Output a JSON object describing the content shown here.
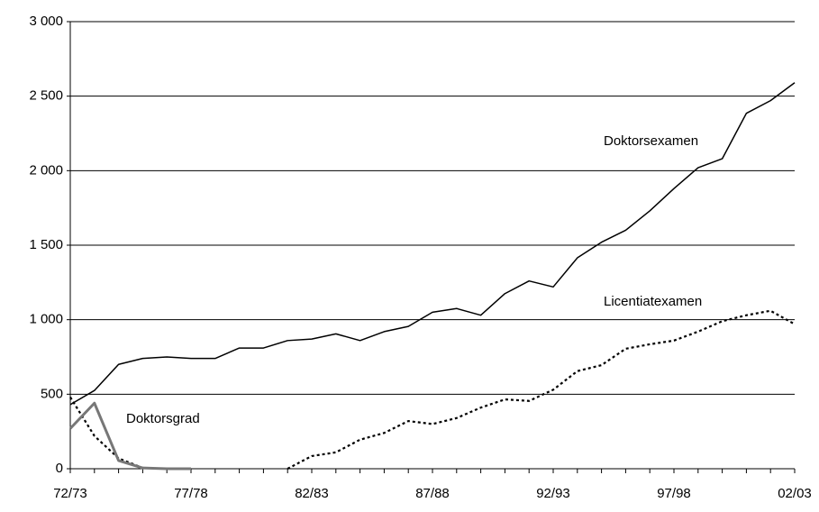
{
  "chart_data": {
    "type": "line",
    "categories": [
      "72/73",
      null,
      null,
      null,
      null,
      "77/78",
      null,
      null,
      null,
      null,
      "82/83",
      null,
      null,
      null,
      null,
      "87/88",
      null,
      null,
      null,
      null,
      "92/93",
      null,
      null,
      null,
      null,
      "97/98",
      null,
      null,
      null,
      null,
      "02/03"
    ],
    "series": [
      {
        "name": "Doktorsexamen",
        "color": "#000000",
        "style": "solid",
        "values": [
          430,
          525,
          700,
          740,
          750,
          740,
          740,
          810,
          810,
          860,
          870,
          905,
          860,
          920,
          955,
          1050,
          1075,
          1030,
          1175,
          1260,
          1220,
          1415,
          1520,
          1600,
          1730,
          1880,
          2020,
          2080,
          2385,
          2470,
          2590
        ]
      },
      {
        "name": "Licentiatexamen",
        "color": "#000000",
        "style": "dotted",
        "values": [
          480,
          220,
          70,
          5,
          null,
          null,
          null,
          null,
          null,
          0,
          85,
          110,
          195,
          240,
          320,
          300,
          340,
          410,
          465,
          455,
          530,
          655,
          695,
          805,
          835,
          860,
          920,
          990,
          1030,
          1060,
          970
        ]
      },
      {
        "name": "Doktorsgrad",
        "color": "#777777",
        "style": "thick",
        "values": [
          270,
          440,
          55,
          5,
          0,
          0,
          null,
          null,
          null,
          null,
          null,
          null,
          null,
          null,
          null,
          null,
          null,
          null,
          null,
          null,
          null,
          null,
          null,
          null,
          null,
          null,
          null,
          null,
          null,
          null,
          null
        ]
      }
    ],
    "ylim": [
      0,
      3000
    ],
    "yticks": [
      0,
      500,
      {
        "value": 1000,
        "label": "1 000"
      },
      {
        "value": 1500,
        "label": "1 500"
      },
      {
        "value": 2000,
        "label": "2 000"
      },
      {
        "value": 2500,
        "label": "2 500"
      },
      {
        "value": 3000,
        "label": "3 000"
      }
    ],
    "grid": true,
    "legend": "inline"
  }
}
